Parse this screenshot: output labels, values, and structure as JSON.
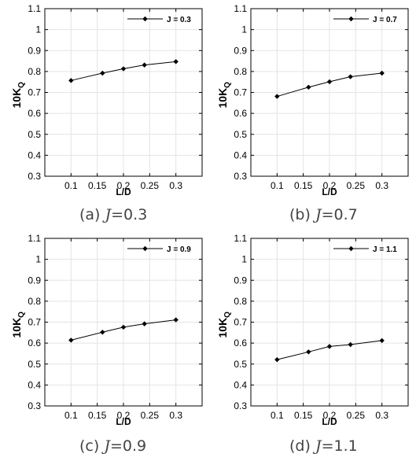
{
  "chart_data": [
    {
      "type": "line",
      "x": [
        0.1,
        0.16,
        0.2,
        0.24,
        0.3
      ],
      "series": [
        {
          "name": "J = 0.3",
          "values": [
            0.757,
            0.792,
            0.813,
            0.831,
            0.847
          ]
        }
      ],
      "xlabel": "L/D",
      "ylabel_main": "10K",
      "ylabel_sub": "Q",
      "xlim": [
        0.05,
        0.35
      ],
      "ylim": [
        0.3,
        1.1
      ],
      "xticks": [
        "0.1",
        "0.15",
        "0.2",
        "0.25",
        "0.3"
      ],
      "yticks": [
        "0.3",
        "0.4",
        "0.5",
        "0.6",
        "0.7",
        "0.8",
        "0.9",
        "1",
        "1.1"
      ],
      "grid": true,
      "legend": "top-right",
      "caption": {
        "prefix": "(a) ",
        "symbol": "J",
        "value": "=0.3"
      }
    },
    {
      "type": "line",
      "x": [
        0.1,
        0.16,
        0.2,
        0.24,
        0.3
      ],
      "series": [
        {
          "name": "J = 0.7",
          "values": [
            0.681,
            0.725,
            0.751,
            0.775,
            0.792
          ]
        }
      ],
      "xlabel": "L/D",
      "ylabel_main": "10K",
      "ylabel_sub": "Q",
      "xlim": [
        0.05,
        0.35
      ],
      "ylim": [
        0.3,
        1.1
      ],
      "xticks": [
        "0.1",
        "0.15",
        "0.2",
        "0.25",
        "0.3"
      ],
      "yticks": [
        "0.3",
        "0.4",
        "0.5",
        "0.6",
        "0.7",
        "0.8",
        "0.9",
        "1",
        "1.1"
      ],
      "grid": true,
      "legend": "top-right",
      "caption": {
        "prefix": "(b) ",
        "symbol": "J",
        "value": "=0.7"
      }
    },
    {
      "type": "line",
      "x": [
        0.1,
        0.16,
        0.2,
        0.24,
        0.3
      ],
      "series": [
        {
          "name": "J = 0.9",
          "values": [
            0.614,
            0.652,
            0.676,
            0.692,
            0.711
          ]
        }
      ],
      "xlabel": "L/D",
      "ylabel_main": "10K",
      "ylabel_sub": "Q",
      "xlim": [
        0.05,
        0.35
      ],
      "ylim": [
        0.3,
        1.1
      ],
      "xticks": [
        "0.1",
        "0.15",
        "0.2",
        "0.25",
        "0.3"
      ],
      "yticks": [
        "0.3",
        "0.4",
        "0.5",
        "0.6",
        "0.7",
        "0.8",
        "0.9",
        "1",
        "1.1"
      ],
      "grid": true,
      "legend": "top-right",
      "caption": {
        "prefix": "(c) ",
        "symbol": "J",
        "value": "=0.9"
      }
    },
    {
      "type": "line",
      "x": [
        0.1,
        0.16,
        0.2,
        0.24,
        0.3
      ],
      "series": [
        {
          "name": "J = 1.1",
          "values": [
            0.521,
            0.558,
            0.584,
            0.593,
            0.612
          ]
        }
      ],
      "xlabel": "L/D",
      "ylabel_main": "10K",
      "ylabel_sub": "Q",
      "xlim": [
        0.05,
        0.35
      ],
      "ylim": [
        0.3,
        1.1
      ],
      "xticks": [
        "0.1",
        "0.15",
        "0.2",
        "0.25",
        "0.3"
      ],
      "yticks": [
        "0.3",
        "0.4",
        "0.5",
        "0.6",
        "0.7",
        "0.8",
        "0.9",
        "1",
        "1.1"
      ],
      "grid": true,
      "legend": "top-right",
      "caption": {
        "prefix": "(d) ",
        "symbol": "J",
        "value": "=1.1"
      }
    }
  ]
}
